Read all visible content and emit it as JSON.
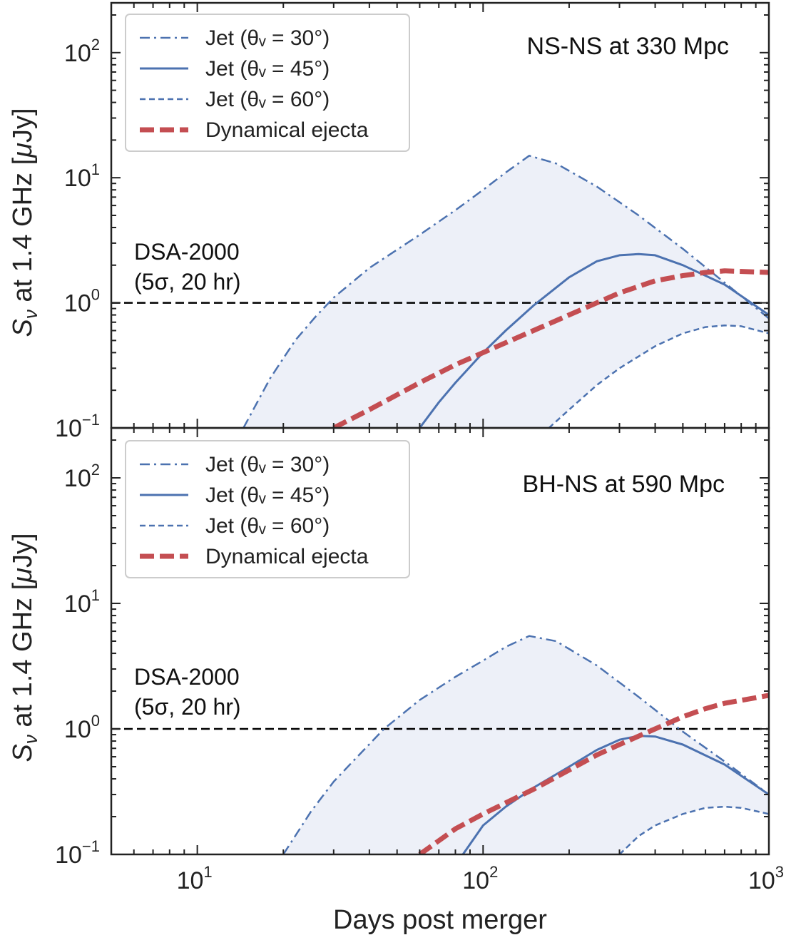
{
  "figure": {
    "xlabel": "Days post merger",
    "ylabel_html": "Sν at 1.4 GHz [μJy]",
    "ylabel_parts": {
      "S": "S",
      "nu": "ν",
      "rest": " at 1.4 GHz [",
      "mu": "μ",
      "unit": "Jy]"
    }
  },
  "colors": {
    "jet": "#4c72b0",
    "ejecta": "#c44e52",
    "fill": "#edf0f8",
    "threshold": "#000000",
    "axes": "#222222"
  },
  "chart_data": [
    {
      "type": "line",
      "panel_title": "NS-NS at 330 Mpc",
      "xscale": "log",
      "yscale": "log",
      "xlim": [
        5,
        1000
      ],
      "ylim": [
        0.1,
        250
      ],
      "x_ticks": [
        {
          "base": "10",
          "exp": "1"
        },
        {
          "base": "10",
          "exp": "2"
        },
        {
          "base": "10",
          "exp": "3"
        }
      ],
      "y_ticks": [
        {
          "base": "10",
          "exp": "−1"
        },
        {
          "base": "10",
          "exp": "0"
        },
        {
          "base": "10",
          "exp": "1"
        },
        {
          "base": "10",
          "exp": "2"
        }
      ],
      "legend_position": "top-left",
      "threshold": {
        "y": 1.0,
        "label_line1": "DSA-2000",
        "label_line2": "(5σ, 20 hr)"
      },
      "shaded_region": "between Jet (θv = 30°) and Jet (θv = 60°)",
      "series": [
        {
          "name": "Jet (θv = 30°)",
          "legend_label": "Jet (θᵥ = 30°)",
          "style": "dashdot",
          "x": [
            14.5,
            18,
            22,
            26,
            30,
            40,
            60,
            80,
            100,
            120,
            145,
            180,
            250,
            350,
            500,
            700,
            1000
          ],
          "y": [
            0.1,
            0.25,
            0.5,
            0.78,
            1.1,
            1.9,
            3.5,
            5.5,
            8,
            11,
            15,
            13,
            8.5,
            5,
            2.7,
            1.45,
            0.75
          ]
        },
        {
          "name": "Jet (θv = 45°)",
          "legend_label": "Jet (θᵥ = 45°)",
          "style": "solid",
          "x": [
            60,
            70,
            80,
            100,
            120,
            150,
            200,
            250,
            300,
            350,
            400,
            500,
            700,
            1000
          ],
          "y": [
            0.1,
            0.16,
            0.23,
            0.4,
            0.6,
            0.95,
            1.6,
            2.15,
            2.4,
            2.45,
            2.4,
            2.0,
            1.4,
            0.8
          ]
        },
        {
          "name": "Jet (θv = 60°)",
          "legend_label": "Jet (θᵥ = 60°)",
          "style": "dashed",
          "x": [
            170,
            200,
            250,
            300,
            400,
            500,
            600,
            700,
            800,
            1000
          ],
          "y": [
            0.1,
            0.14,
            0.22,
            0.3,
            0.45,
            0.57,
            0.64,
            0.66,
            0.65,
            0.57
          ]
        },
        {
          "name": "Dynamical ejecta",
          "legend_label": "Dynamical ejecta",
          "style": "thick-dashed",
          "x": [
            30,
            40,
            60,
            80,
            100,
            150,
            200,
            250,
            300,
            400,
            500,
            600,
            700,
            1000
          ],
          "y": [
            0.1,
            0.14,
            0.23,
            0.32,
            0.4,
            0.6,
            0.8,
            1.0,
            1.2,
            1.5,
            1.65,
            1.75,
            1.8,
            1.75
          ]
        }
      ]
    },
    {
      "type": "line",
      "panel_title": "BH-NS at 590 Mpc",
      "xscale": "log",
      "yscale": "log",
      "xlim": [
        5,
        1000
      ],
      "ylim": [
        0.1,
        250
      ],
      "x_ticks": [
        {
          "base": "10",
          "exp": "1"
        },
        {
          "base": "10",
          "exp": "2"
        },
        {
          "base": "10",
          "exp": "3"
        }
      ],
      "y_ticks": [
        {
          "base": "10",
          "exp": "−1"
        },
        {
          "base": "10",
          "exp": "0"
        },
        {
          "base": "10",
          "exp": "1"
        },
        {
          "base": "10",
          "exp": "2"
        }
      ],
      "legend_position": "top-left",
      "threshold": {
        "y": 1.0,
        "label_line1": "DSA-2000",
        "label_line2": "(5σ, 20 hr)"
      },
      "shaded_region": "between Jet (θv = 30°) and Jet (θv = 60°)",
      "series": [
        {
          "name": "Jet (θv = 30°)",
          "legend_label": "Jet (θᵥ = 30°)",
          "style": "dashdot",
          "x": [
            20,
            25,
            30,
            35,
            45,
            60,
            80,
            100,
            120,
            145,
            180,
            250,
            350,
            500,
            700,
            1000
          ],
          "y": [
            0.1,
            0.22,
            0.38,
            0.55,
            1.0,
            1.7,
            2.6,
            3.5,
            4.5,
            5.5,
            5.0,
            3.2,
            1.8,
            0.95,
            0.55,
            0.3
          ]
        },
        {
          "name": "Jet (θv = 45°)",
          "legend_label": "Jet (θᵥ = 45°)",
          "style": "solid",
          "x": [
            85,
            100,
            120,
            150,
            200,
            250,
            300,
            350,
            400,
            500,
            700,
            1000
          ],
          "y": [
            0.1,
            0.17,
            0.24,
            0.34,
            0.5,
            0.68,
            0.82,
            0.88,
            0.87,
            0.75,
            0.52,
            0.3
          ]
        },
        {
          "name": "Jet (θv = 60°)",
          "legend_label": "Jet (θᵥ = 60°)",
          "style": "dashed",
          "x": [
            300,
            350,
            400,
            500,
            600,
            700,
            800,
            1000
          ],
          "y": [
            0.1,
            0.14,
            0.17,
            0.21,
            0.235,
            0.24,
            0.235,
            0.21
          ]
        },
        {
          "name": "Dynamical ejecta",
          "legend_label": "Dynamical ejecta",
          "style": "thick-dashed",
          "x": [
            60,
            80,
            100,
            150,
            200,
            250,
            300,
            400,
            500,
            600,
            700,
            1000
          ],
          "y": [
            0.1,
            0.16,
            0.21,
            0.33,
            0.47,
            0.62,
            0.75,
            1.0,
            1.25,
            1.45,
            1.6,
            1.85
          ]
        }
      ]
    }
  ]
}
